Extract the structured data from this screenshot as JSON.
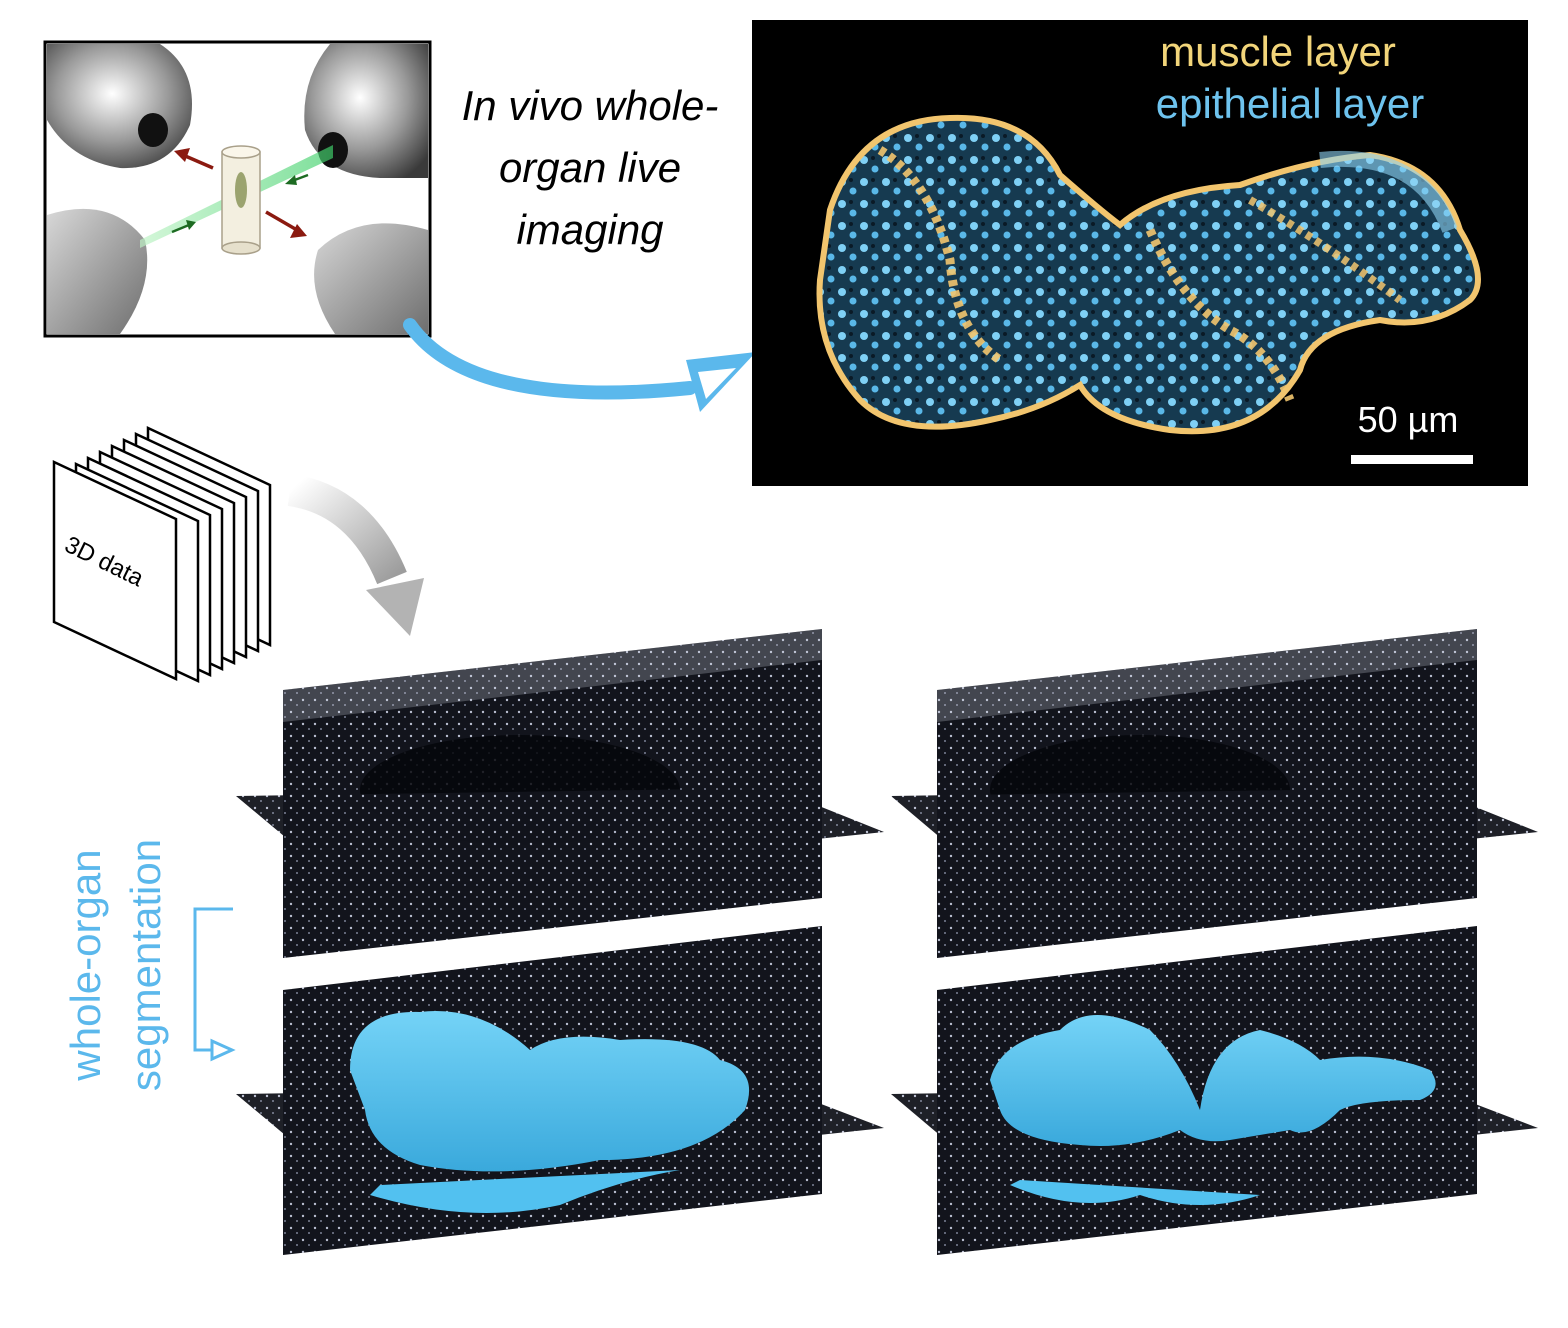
{
  "imaging_caption": [
    "In vivo whole-",
    "organ live",
    "imaging"
  ],
  "fluorescence_panel": {
    "legend": [
      {
        "label": "muscle layer",
        "color": "#f2d57a"
      },
      {
        "label": "epithelial layer",
        "color": "#6ec3ee"
      }
    ],
    "scale_bar_label": "50 µm",
    "background": "#000000"
  },
  "stack_label": "3D data",
  "segmentation_label": [
    "whole-organ",
    "segmentation"
  ],
  "colors": {
    "accent_blue": "#5bb8ec",
    "segmentation_fill": "#52c1f0",
    "laser_green": "#7ee88a",
    "motion_arrow_red": "#8b1a10",
    "flow_arrow_gray": "#b8b8b8"
  }
}
